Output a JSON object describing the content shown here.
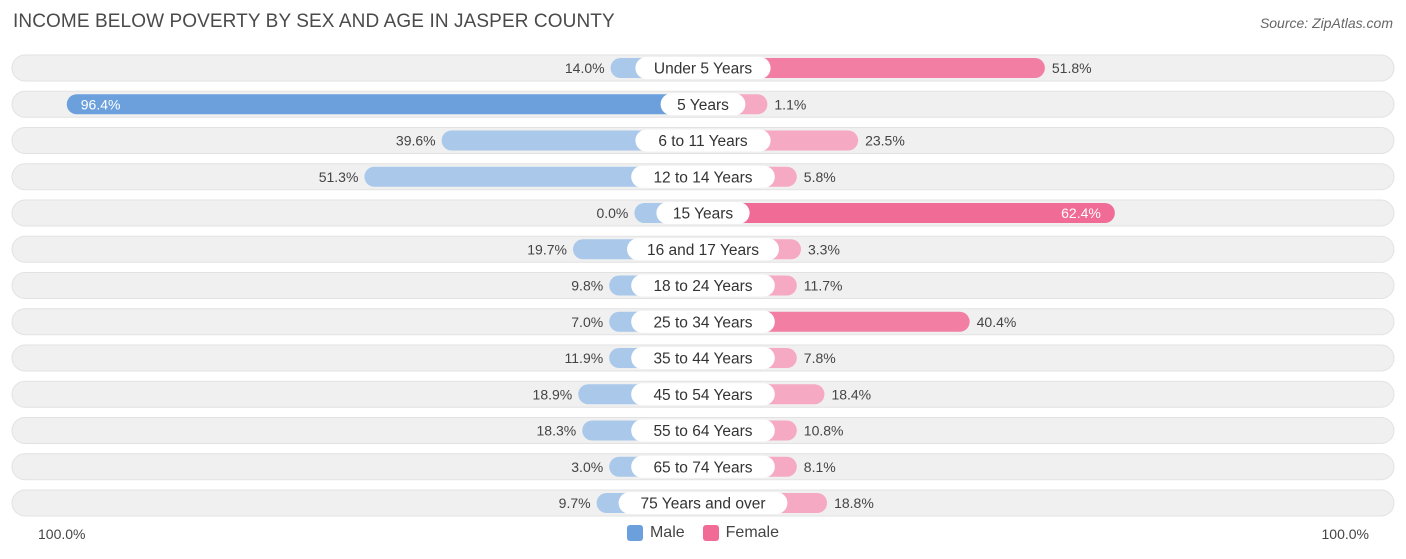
{
  "header": {
    "title": "INCOME BELOW POVERTY BY SEX AND AGE IN JASPER COUNTY",
    "source": "Source: ZipAtlas.com"
  },
  "colors": {
    "male_strong": "#6ba0dc",
    "male_light": "#a9c8ea",
    "female_strong": "#f06c97",
    "female_light": "#f6a9c2",
    "row_bg": "#f0f0f0",
    "row_border": "#e2e2e2"
  },
  "legend": {
    "male_label": "Male",
    "female_label": "Female"
  },
  "axis": {
    "left_label": "100.0%",
    "right_label": "100.0%"
  },
  "chart_data": {
    "type": "bar",
    "orientation": "horizontal-diverging",
    "title": "INCOME BELOW POVERTY BY SEX AND AGE IN JASPER COUNTY",
    "xlim": [
      -100,
      100
    ],
    "categories": [
      "Under 5 Years",
      "5 Years",
      "6 to 11 Years",
      "12 to 14 Years",
      "15 Years",
      "16 and 17 Years",
      "18 to 24 Years",
      "25 to 34 Years",
      "35 to 44 Years",
      "45 to 54 Years",
      "55 to 64 Years",
      "65 to 74 Years",
      "75 Years and over"
    ],
    "series": [
      {
        "name": "Male",
        "values": [
          14.0,
          96.4,
          39.6,
          51.3,
          0.0,
          19.7,
          9.8,
          7.0,
          11.9,
          18.9,
          18.3,
          3.0,
          9.7
        ],
        "labels": [
          "14.0%",
          "96.4%",
          "39.6%",
          "51.3%",
          "0.0%",
          "19.7%",
          "9.8%",
          "7.0%",
          "11.9%",
          "18.9%",
          "18.3%",
          "3.0%",
          "9.7%"
        ]
      },
      {
        "name": "Female",
        "values": [
          51.8,
          1.1,
          23.5,
          5.8,
          62.4,
          3.3,
          11.7,
          40.4,
          7.8,
          18.4,
          10.8,
          8.1,
          18.8
        ],
        "labels": [
          "51.8%",
          "1.1%",
          "23.5%",
          "5.8%",
          "62.4%",
          "3.3%",
          "11.7%",
          "40.4%",
          "7.8%",
          "18.4%",
          "10.8%",
          "8.1%",
          "18.8%"
        ]
      }
    ]
  }
}
